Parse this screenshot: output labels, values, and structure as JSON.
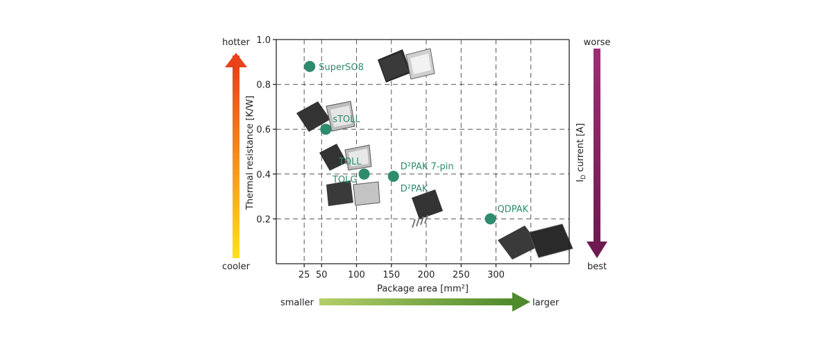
{
  "colors": {
    "point": "#2e8b6e",
    "grid": "#555555",
    "axis": "#222222",
    "hot_top": "#e8421b",
    "hot_bottom": "#ffe21a",
    "current": "#7a1f5c",
    "area_left": "#b4cf6a",
    "area_right": "#4f8a2c"
  },
  "labels": {
    "hotter": "hotter",
    "cooler": "cooler",
    "worse": "worse",
    "best": "best",
    "smaller": "smaller",
    "larger": "larger",
    "right_axis": "I₀ current  [A]",
    "right_axis_main": "I",
    "right_axis_sub": "D",
    "right_axis_rest": " current  [A]"
  },
  "chart_data": {
    "type": "scatter",
    "title": "",
    "xlabel": "Package area [mm²]",
    "ylabel": "Thermal resistance [K/W]",
    "xlim": [
      -15,
      405
    ],
    "ylim": [
      0,
      1.0
    ],
    "x_ticks": [
      25,
      50,
      100,
      150,
      200,
      250,
      300
    ],
    "x_tick_labels": [
      "25",
      "50",
      "100",
      "150",
      "200",
      "250",
      "300"
    ],
    "x_grid": [
      25,
      50,
      100,
      150,
      200,
      250,
      300,
      350
    ],
    "y_ticks": [
      0.2,
      0.4,
      0.6,
      0.8,
      1.0
    ],
    "y_tick_labels": [
      "0.2",
      "0.4",
      "0.6",
      "0.8",
      "1.0"
    ],
    "grid": true,
    "points": [
      {
        "name": "SuperSO8",
        "x": 33,
        "y": 0.88,
        "label_pos": "right"
      },
      {
        "name": "sTOLL",
        "x": 56,
        "y": 0.6,
        "label_pos": "above-right"
      },
      {
        "name": "TOLL",
        "x": 111,
        "y": 0.4,
        "label_pos": "above-left"
      },
      {
        "name": "TOLG",
        "x": 111,
        "y": 0.4,
        "label_pos": "below-left"
      },
      {
        "name": "D²PAK 7-pin",
        "x": 153,
        "y": 0.39,
        "label_pos": "above-right"
      },
      {
        "name": "D²PAK",
        "x": 153,
        "y": 0.39,
        "label_pos": "below-right"
      },
      {
        "name": "QDPAK",
        "x": 292,
        "y": 0.2,
        "label_pos": "above-right"
      }
    ]
  }
}
